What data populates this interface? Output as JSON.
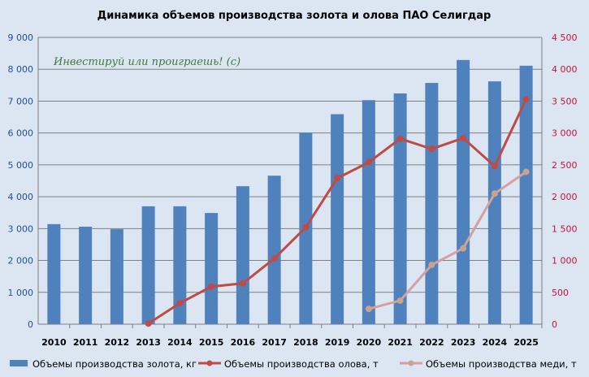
{
  "chart_data": {
    "type": "bar+line",
    "title": "Динамика объемов производства золота и олова ПАО Селигдар",
    "watermark": "Инвестируй или проиграешь! (с)",
    "categories": [
      "2010",
      "2011",
      "2012",
      "2013",
      "2014",
      "2015",
      "2016",
      "2017",
      "2018",
      "2019",
      "2020",
      "2021",
      "2022",
      "2023",
      "2024",
      "2025"
    ],
    "left_axis": {
      "range": [
        0,
        9000
      ],
      "ticks": [
        "0",
        "1 000",
        "2 000",
        "3 000",
        "4 000",
        "5 000",
        "6 000",
        "7 000",
        "8 000",
        "9 000"
      ],
      "color": "#1f4e99"
    },
    "right_axis": {
      "range": [
        0,
        4500
      ],
      "ticks": [
        "0",
        "500",
        "1 000",
        "1 500",
        "2 000",
        "2 500",
        "3 000",
        "3 500",
        "4 000",
        "4 500"
      ],
      "color": "#c0143c"
    },
    "grid": true,
    "legend_position": "bottom",
    "series": [
      {
        "name": "Объемы производства золота, кг",
        "type": "bar",
        "axis": "left",
        "color": "#4f81bd",
        "values": [
          3140,
          3060,
          2980,
          3700,
          3700,
          3490,
          4330,
          4660,
          6010,
          6590,
          7030,
          7240,
          7570,
          8290,
          7620,
          8110
        ]
      },
      {
        "name": "Объемы производства олова, т",
        "type": "line",
        "axis": "right",
        "color": "#be4b48",
        "values": [
          null,
          null,
          null,
          10,
          330,
          590,
          640,
          1030,
          1520,
          2290,
          2540,
          2910,
          2750,
          2920,
          2480,
          3530
        ]
      },
      {
        "name": "Объемы производства меди, т",
        "type": "line",
        "axis": "right",
        "color": "#d4a0a0",
        "values": [
          null,
          null,
          null,
          null,
          null,
          null,
          null,
          null,
          null,
          null,
          240,
          370,
          930,
          1190,
          2050,
          2390
        ]
      }
    ]
  }
}
